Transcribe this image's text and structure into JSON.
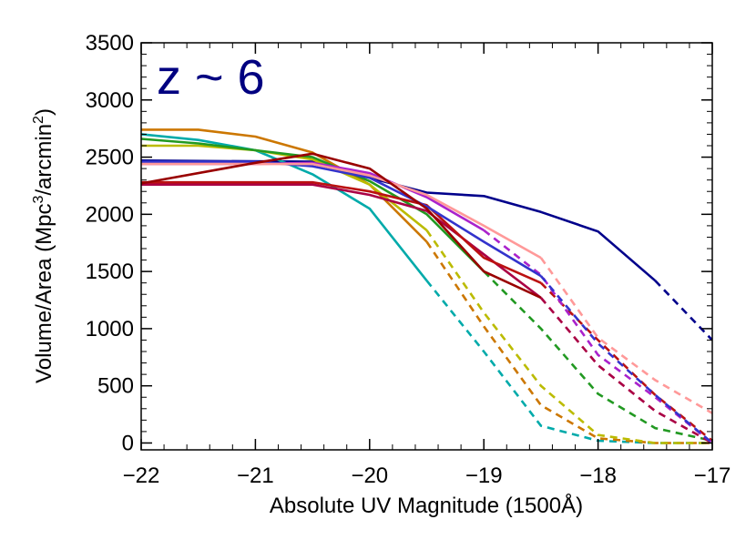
{
  "chart_data": {
    "type": "line",
    "annotation": "z ~ 6",
    "annotation_color": "#000080",
    "xlabel": "Absolute UV Magnitude (1500Å)",
    "ylabel_main": "Volume/Area (Mpc",
    "ylabel_sup1": "3",
    "ylabel_mid": "/arcmin",
    "ylabel_sup2": "2",
    "ylabel_end": ")",
    "xlim": [
      -22,
      -17
    ],
    "ylim": [
      -60,
      3500
    ],
    "xticks": [
      -22,
      -21,
      -20,
      -19,
      -18,
      -17
    ],
    "xtick_labels": [
      "−22",
      "−21",
      "−20",
      "−19",
      "−18",
      "−17"
    ],
    "yticks": [
      0,
      500,
      1000,
      1500,
      2000,
      2500,
      3000,
      3500
    ],
    "ytick_labels": [
      "0",
      "500",
      "1000",
      "1500",
      "2000",
      "2500",
      "3000",
      "3500"
    ],
    "grid": false,
    "legend": "none",
    "series": [
      {
        "color": "#00008B",
        "x": [
          -22,
          -20.5,
          -20,
          -19.5,
          -19,
          -18.5,
          -18,
          -17.5,
          -17
        ],
        "y": [
          2470,
          2460,
          2320,
          2190,
          2160,
          2020,
          1850,
          1420,
          900
        ],
        "dashed_from": -17.5
      },
      {
        "color": "#00AAAA",
        "x": [
          -22,
          -21.5,
          -21,
          -20.5,
          -20,
          -19.5,
          -19,
          -18.5,
          -18,
          -17.5,
          -17
        ],
        "y": [
          2700,
          2650,
          2560,
          2350,
          2050,
          1420,
          800,
          150,
          20,
          0,
          0
        ],
        "dashed_from": -19.5
      },
      {
        "color": "#CC7700",
        "x": [
          -22,
          -21.5,
          -21,
          -20.5,
          -20,
          -19.5,
          -19,
          -18.5,
          -18,
          -17.5,
          -17
        ],
        "y": [
          2740,
          2740,
          2680,
          2540,
          2260,
          1760,
          1020,
          330,
          40,
          0,
          0
        ],
        "dashed_from": -19.5
      },
      {
        "color": "#BBBB00",
        "x": [
          -22,
          -21.5,
          -21,
          -20.5,
          -20,
          -19.5,
          -19,
          -18.5,
          -18,
          -17.5,
          -17
        ],
        "y": [
          2600,
          2600,
          2560,
          2480,
          2260,
          1860,
          1140,
          500,
          70,
          0,
          0
        ],
        "dashed_from": -19.5
      },
      {
        "color": "#229922",
        "x": [
          -22,
          -21.5,
          -21,
          -20.5,
          -20,
          -19.5,
          -19,
          -18.5,
          -18,
          -17.5,
          -17
        ],
        "y": [
          2660,
          2620,
          2560,
          2500,
          2290,
          2000,
          1500,
          1000,
          430,
          130,
          20
        ],
        "dashed_from": -19
      },
      {
        "color": "#AA0044",
        "x": [
          -22,
          -21,
          -20.5,
          -20,
          -19.5,
          -19,
          -18.5,
          -18,
          -17.5,
          -17
        ],
        "y": [
          2260,
          2260,
          2260,
          2170,
          2030,
          1650,
          1270,
          680,
          280,
          0
        ],
        "dashed_from": -18.5
      },
      {
        "color": "#BB1111",
        "x": [
          -22,
          -21,
          -20.5,
          -20,
          -19.5,
          -19,
          -18.5,
          -18,
          -17.5,
          -17
        ],
        "y": [
          2280,
          2280,
          2280,
          2200,
          2080,
          1620,
          1400,
          900,
          420,
          20
        ],
        "dashed_from": -18.5
      },
      {
        "color": "#AA22CC",
        "x": [
          -22,
          -21,
          -20.5,
          -20,
          -19.5,
          -19,
          -18.5,
          -18,
          -17.5,
          -17
        ],
        "y": [
          2440,
          2440,
          2450,
          2360,
          2150,
          1860,
          1470,
          770,
          400,
          0
        ],
        "dashed_from": -19
      },
      {
        "color": "#3333CC",
        "x": [
          -22,
          -21,
          -20.5,
          -20,
          -19.5,
          -19,
          -18.5,
          -18,
          -17.5,
          -17
        ],
        "y": [
          2460,
          2460,
          2420,
          2320,
          2070,
          1760,
          1460,
          870,
          420,
          0
        ],
        "dashed_from": -18.5
      },
      {
        "color": "#FF9999",
        "x": [
          -22,
          -21,
          -20.5,
          -20,
          -19.5,
          -19,
          -18.5,
          -18,
          -17.5,
          -17
        ],
        "y": [
          2440,
          2440,
          2440,
          2340,
          2170,
          1900,
          1620,
          920,
          550,
          260
        ],
        "dashed_from": -18.5
      },
      {
        "color": "#990000",
        "x": [
          -22,
          -21,
          -20.5,
          -20,
          -19.5,
          -19,
          -18.5
        ],
        "y": [
          2270,
          2450,
          2530,
          2400,
          2050,
          1500,
          1270
        ],
        "dashed_from": null
      }
    ]
  }
}
